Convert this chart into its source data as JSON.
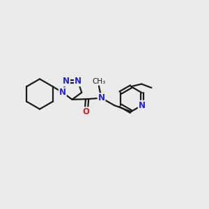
{
  "bg_color": "#ebebeb",
  "bond_color": "#1a1a1a",
  "N_color": "#2222cc",
  "O_color": "#cc2222",
  "line_width": 1.6,
  "font_size_atom": 8.5,
  "fig_size": [
    3.0,
    3.0
  ],
  "dpi": 100,
  "xlim": [
    0,
    10
  ],
  "ylim": [
    0,
    10
  ]
}
